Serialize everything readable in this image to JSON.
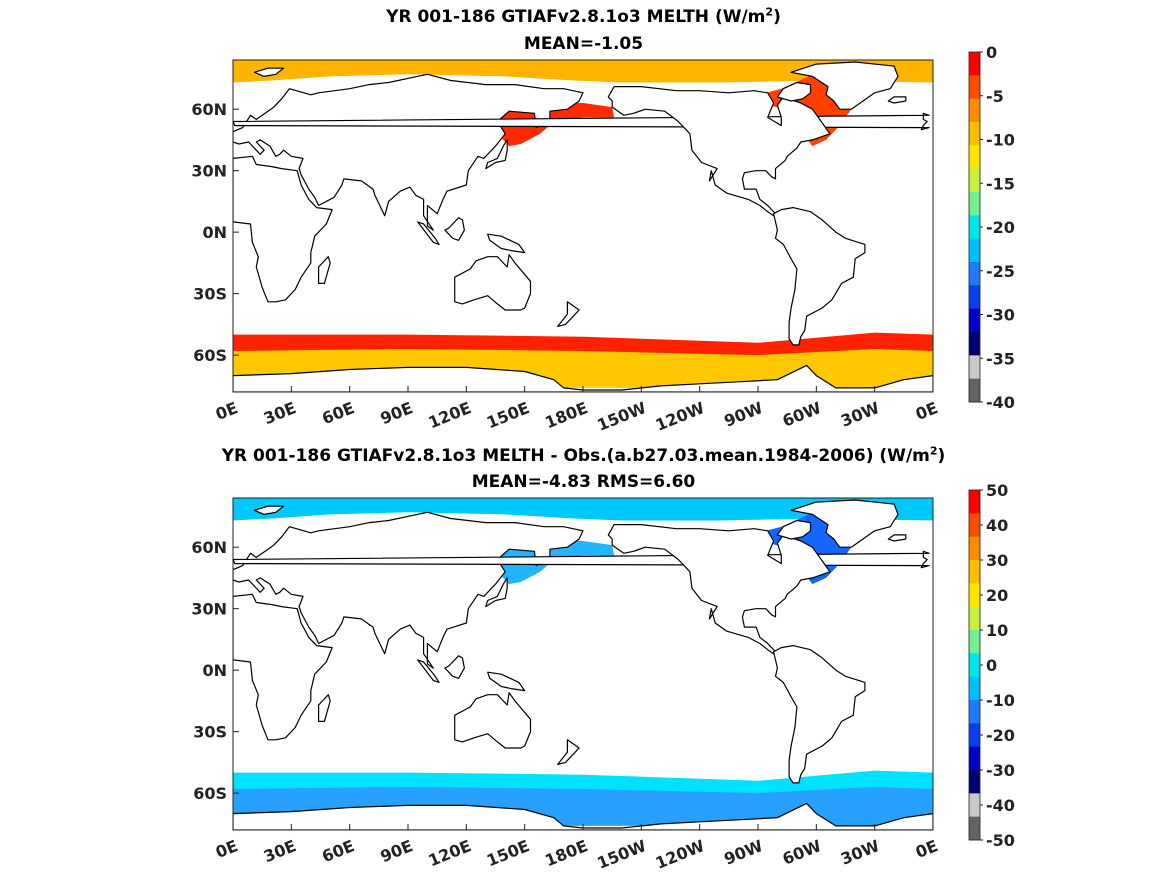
{
  "chart_data": [
    {
      "type": "heatmap",
      "title_main": "YR 001-186 GTIAFv2.8.1o3  MELTH (W/m",
      "title_unit_sup": "2",
      "title_close": ")",
      "subtitle": "MEAN=-1.05",
      "lat_ticks": [
        "60N",
        "30N",
        "0N",
        "30S",
        "60S"
      ],
      "lon_ticks": [
        "0E",
        "30E",
        "60E",
        "90E",
        "120E",
        "150E",
        "180E",
        "150W",
        "120W",
        "90W",
        "60W",
        "30W",
        "0E"
      ],
      "colorbar": {
        "ticks": [
          "0",
          "-5",
          "-10",
          "-15",
          "-20",
          "-25",
          "-30",
          "-35",
          "-40"
        ],
        "range": [
          -40,
          0
        ],
        "colors": [
          "#ff0000",
          "#ff4b00",
          "#ff8c00",
          "#ffbf00",
          "#ffe600",
          "#c8f03c",
          "#70f090",
          "#00e6e6",
          "#00bfff",
          "#1e7bff",
          "#0a3cf0",
          "#0000c8",
          "#00006e",
          "#c8c8c8",
          "#646464"
        ]
      },
      "regions": {
        "arctic": "#ffb400",
        "southern_ocean_core": "#ffc800",
        "southern_ocean_edge": "#ff2200",
        "north_pacific": "#ff2a00",
        "labrador_sea": "#ff4000"
      }
    },
    {
      "type": "heatmap",
      "title_main": "YR 001-186 GTIAFv2.8.1o3 MELTH - Obs.(a.b27.03.mean.1984-2006) (W/m",
      "title_unit_sup": "2",
      "title_close": ")",
      "subtitle": "MEAN=-4.83 RMS=6.60",
      "lat_ticks": [
        "60N",
        "30N",
        "0N",
        "30S",
        "60S"
      ],
      "lon_ticks": [
        "0E",
        "30E",
        "60E",
        "90E",
        "120E",
        "150E",
        "180E",
        "150W",
        "120W",
        "90W",
        "60W",
        "30W",
        "0E"
      ],
      "colorbar": {
        "ticks": [
          "50",
          "40",
          "30",
          "20",
          "10",
          "0",
          "-10",
          "-20",
          "-30",
          "-40",
          "-50"
        ],
        "range": [
          -50,
          50
        ],
        "colors": [
          "#ff0000",
          "#ff4b00",
          "#ff8c00",
          "#ffbf00",
          "#ffe600",
          "#c8f03c",
          "#70f090",
          "#00e6e6",
          "#00bfff",
          "#1e7bff",
          "#0a3cf0",
          "#0000c8",
          "#00006e",
          "#c8c8c8",
          "#646464"
        ]
      },
      "regions": {
        "arctic": "#00c8ff",
        "southern_ocean_core": "#28a0ff",
        "southern_ocean_edge": "#00e0ff",
        "north_pacific": "#22b4ff",
        "labrador_sea": "#1466ff"
      }
    }
  ]
}
